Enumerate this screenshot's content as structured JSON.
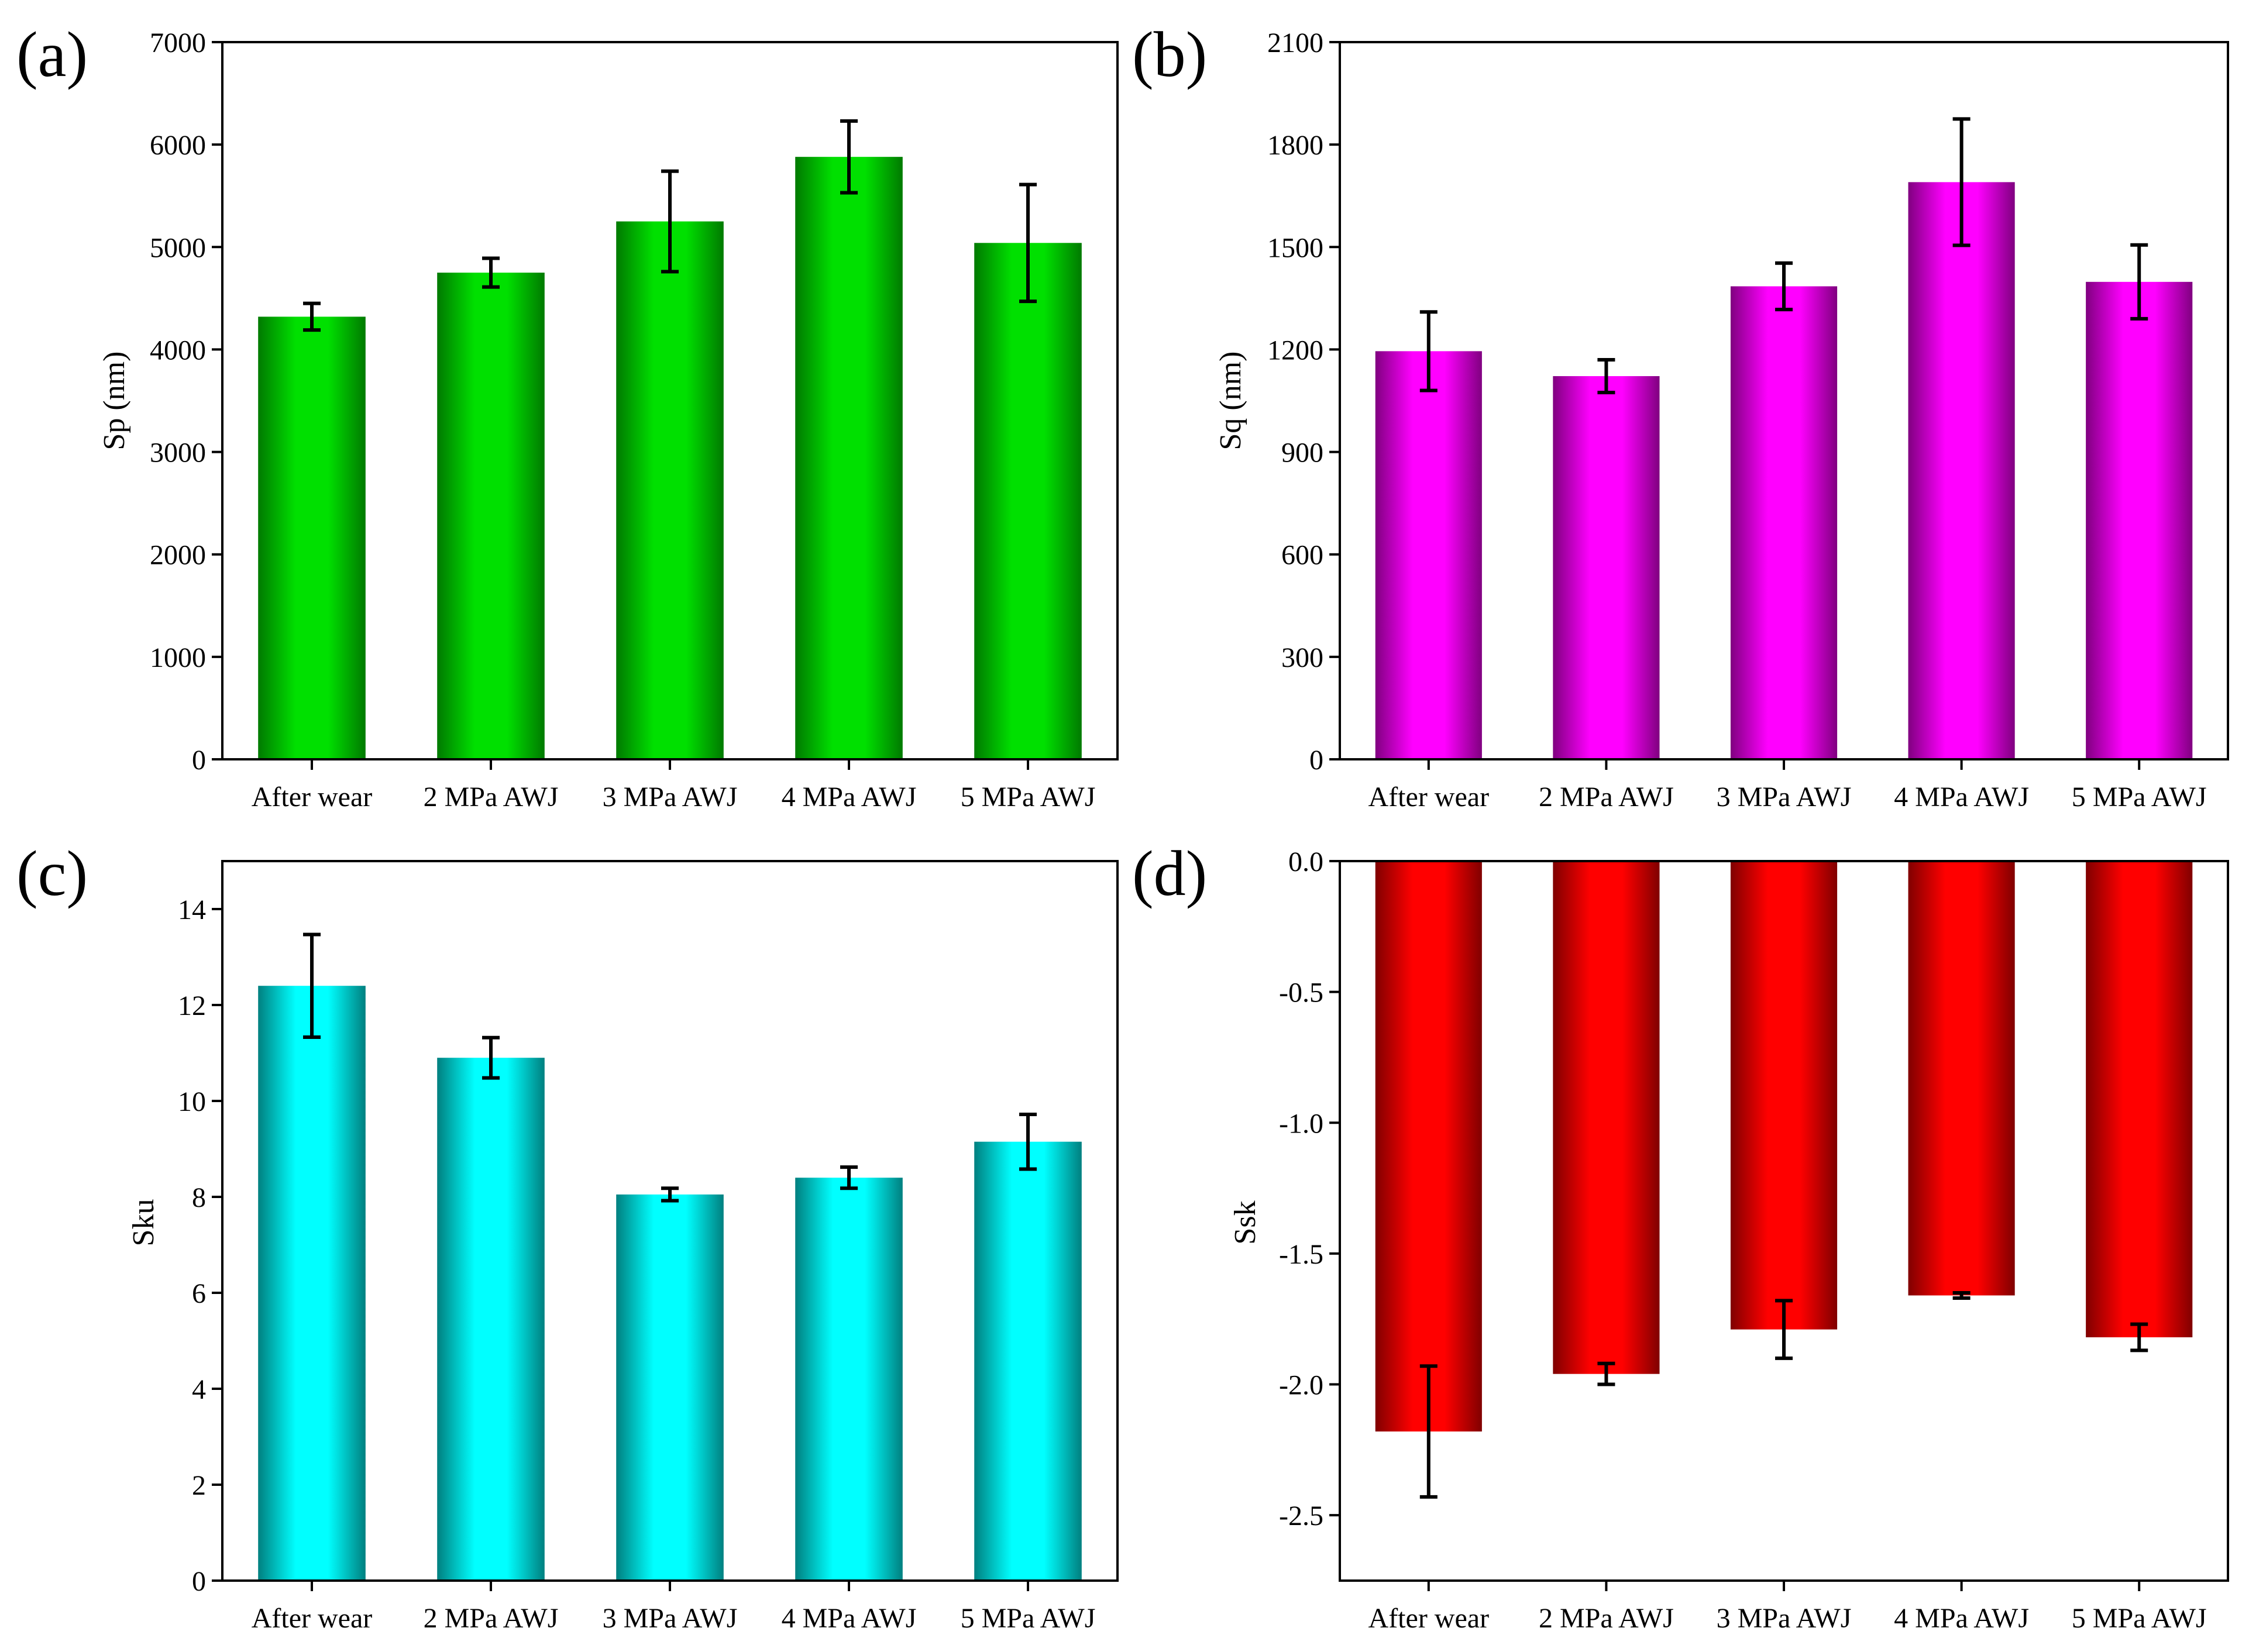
{
  "chart_data": [
    {
      "panel": "(a)",
      "type": "bar",
      "ylabel": "Sp (nm)",
      "categories": [
        "After wear",
        "2 MPa AWJ",
        "3 MPa AWJ",
        "4 MPa AWJ",
        "5 MPa AWJ"
      ],
      "values": [
        4320,
        4750,
        5250,
        5880,
        5040
      ],
      "errors": [
        130,
        140,
        490,
        350,
        570
      ],
      "ylim": [
        0,
        7000
      ],
      "yticks": [
        "0",
        "1000",
        "2000",
        "3000",
        "4000",
        "5000",
        "6000",
        "7000"
      ],
      "color": "#00e000",
      "color_dark": "#007a00"
    },
    {
      "panel": "(b)",
      "type": "bar",
      "ylabel": "Sq (nm)",
      "categories": [
        "After wear",
        "2 MPa AWJ",
        "3 MPa AWJ",
        "4 MPa AWJ",
        "5 MPa AWJ"
      ],
      "values": [
        1195,
        1122,
        1385,
        1690,
        1398
      ],
      "errors": [
        115,
        48,
        68,
        185,
        108
      ],
      "ylim": [
        0,
        2100
      ],
      "yticks": [
        "0",
        "300",
        "600",
        "900",
        "1200",
        "1500",
        "1800",
        "2100"
      ],
      "color": "#ff00ff",
      "color_dark": "#800080"
    },
    {
      "panel": "(c)",
      "type": "bar",
      "ylabel": "Sku",
      "categories": [
        "After wear",
        "2 MPa AWJ",
        "3 MPa AWJ",
        "4 MPa AWJ",
        "5 MPa AWJ"
      ],
      "values": [
        12.4,
        10.9,
        8.05,
        8.4,
        9.15
      ],
      "errors": [
        1.07,
        0.42,
        0.13,
        0.22,
        0.57
      ],
      "ylim": [
        0,
        15
      ],
      "yticks": [
        "0",
        "2",
        "4",
        "6",
        "8",
        "10",
        "12",
        "14"
      ],
      "color": "#00ffff",
      "color_dark": "#008080"
    },
    {
      "panel": "(d)",
      "type": "bar",
      "ylabel": "Ssk",
      "categories": [
        "After wear",
        "2 MPa AWJ",
        "3 MPa AWJ",
        "4 MPa AWJ",
        "5 MPa AWJ"
      ],
      "values": [
        -2.18,
        -1.96,
        -1.79,
        -1.66,
        -1.82
      ],
      "errors": [
        0.25,
        0.04,
        0.11,
        0.01,
        0.05
      ],
      "ylim": [
        -2.75,
        0
      ],
      "yticks": [
        "0.0",
        "-0.5",
        "-1.0",
        "-1.5",
        "-2.0",
        "-2.5"
      ],
      "color": "#ff0000",
      "color_dark": "#800000"
    }
  ]
}
